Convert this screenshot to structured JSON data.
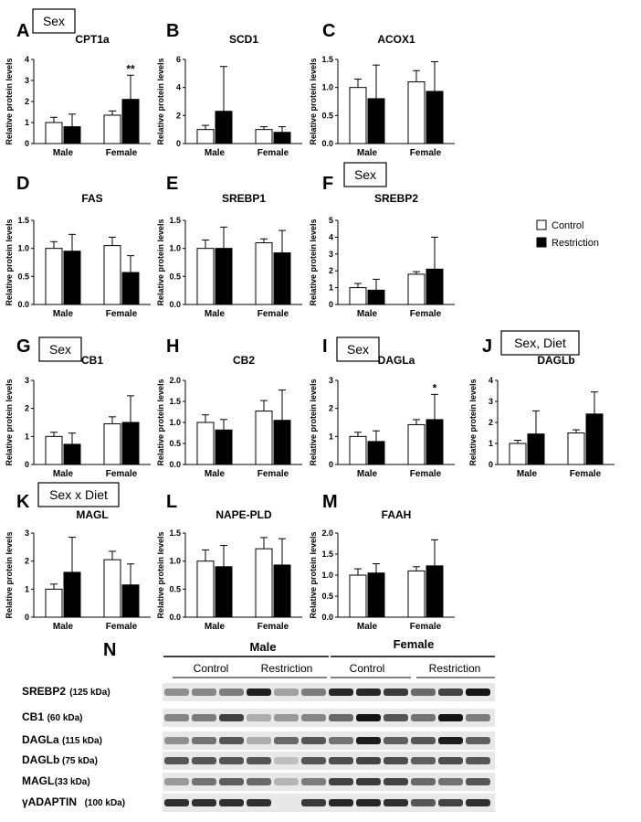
{
  "legend": [
    {
      "label": "Control",
      "color": "#ffffff"
    },
    {
      "label": "Restriction",
      "color": "#000000"
    }
  ],
  "ylabel": "Relative protein levels",
  "chart_data": [
    {
      "letter": "A",
      "title": "CPT1a",
      "type": "bar",
      "categories": [
        "Male",
        "Female"
      ],
      "series": [
        {
          "name": "Control",
          "values": [
            1.0,
            1.35
          ],
          "errors": [
            0.25,
            0.2
          ]
        },
        {
          "name": "Restriction",
          "values": [
            0.8,
            2.1
          ],
          "errors": [
            0.6,
            1.15
          ]
        }
      ],
      "ylim": [
        0,
        4
      ],
      "yticks": [
        "0",
        "1",
        "2",
        "3",
        "4"
      ],
      "annotation": {
        "text": "**",
        "category": 1,
        "series": 1
      },
      "sex_box": "Sex"
    },
    {
      "letter": "B",
      "title": "SCD1",
      "type": "bar",
      "categories": [
        "Male",
        "Female"
      ],
      "series": [
        {
          "name": "Control",
          "values": [
            1.0,
            1.0
          ],
          "errors": [
            0.3,
            0.2
          ]
        },
        {
          "name": "Restriction",
          "values": [
            2.3,
            0.8
          ],
          "errors": [
            3.2,
            0.4
          ]
        }
      ],
      "ylim": [
        0,
        6
      ],
      "yticks": [
        "0",
        "2",
        "4",
        "6"
      ]
    },
    {
      "letter": "C",
      "title": "ACOX1",
      "type": "bar",
      "categories": [
        "Male",
        "Female"
      ],
      "series": [
        {
          "name": "Control",
          "values": [
            1.0,
            1.1
          ],
          "errors": [
            0.15,
            0.2
          ]
        },
        {
          "name": "Restriction",
          "values": [
            0.8,
            0.93
          ],
          "errors": [
            0.6,
            0.53
          ]
        }
      ],
      "ylim": [
        0,
        1.5
      ],
      "yticks": [
        "0.0",
        "0.5",
        "1.0",
        "1.5"
      ]
    },
    {
      "letter": "D",
      "title": "FAS",
      "type": "bar",
      "categories": [
        "Male",
        "Female"
      ],
      "series": [
        {
          "name": "Control",
          "values": [
            1.0,
            1.05
          ],
          "errors": [
            0.12,
            0.15
          ]
        },
        {
          "name": "Restriction",
          "values": [
            0.95,
            0.57
          ],
          "errors": [
            0.3,
            0.3
          ]
        }
      ],
      "ylim": [
        0,
        1.5
      ],
      "yticks": [
        "0.0",
        "0.5",
        "1.0",
        "1.5"
      ]
    },
    {
      "letter": "E",
      "title": "SREBP1",
      "type": "bar",
      "categories": [
        "Male",
        "Female"
      ],
      "series": [
        {
          "name": "Control",
          "values": [
            1.0,
            1.1
          ],
          "errors": [
            0.15,
            0.07
          ]
        },
        {
          "name": "Restriction",
          "values": [
            1.0,
            0.92
          ],
          "errors": [
            0.38,
            0.4
          ]
        }
      ],
      "ylim": [
        0,
        1.5
      ],
      "yticks": [
        "0.0",
        "0.5",
        "1.0",
        "1.5"
      ]
    },
    {
      "letter": "F",
      "title": "SREBP2",
      "type": "bar",
      "categories": [
        "Male",
        "Female"
      ],
      "series": [
        {
          "name": "Control",
          "values": [
            1.0,
            1.8
          ],
          "errors": [
            0.25,
            0.15
          ]
        },
        {
          "name": "Restriction",
          "values": [
            0.85,
            2.1
          ],
          "errors": [
            0.65,
            1.9
          ]
        }
      ],
      "ylim": [
        0,
        5
      ],
      "yticks": [
        "0",
        "1",
        "2",
        "3",
        "4",
        "5"
      ],
      "sex_box": "Sex"
    },
    {
      "letter": "G",
      "title": "CB1",
      "type": "bar",
      "categories": [
        "Male",
        "Female"
      ],
      "series": [
        {
          "name": "Control",
          "values": [
            1.0,
            1.45
          ],
          "errors": [
            0.15,
            0.25
          ]
        },
        {
          "name": "Restriction",
          "values": [
            0.72,
            1.5
          ],
          "errors": [
            0.4,
            0.95
          ]
        }
      ],
      "ylim": [
        0,
        3
      ],
      "yticks": [
        "0",
        "1",
        "2",
        "3"
      ],
      "sex_box": "Sex"
    },
    {
      "letter": "H",
      "title": "CB2",
      "type": "bar",
      "categories": [
        "Male",
        "Female"
      ],
      "series": [
        {
          "name": "Control",
          "values": [
            1.0,
            1.27
          ],
          "errors": [
            0.18,
            0.25
          ]
        },
        {
          "name": "Restriction",
          "values": [
            0.82,
            1.05
          ],
          "errors": [
            0.25,
            0.72
          ]
        }
      ],
      "ylim": [
        0,
        2.0
      ],
      "yticks": [
        "0.0",
        "0.5",
        "1.0",
        "1.5",
        "2.0"
      ]
    },
    {
      "letter": "I",
      "title": "DAGLa",
      "type": "bar",
      "categories": [
        "Male",
        "Female"
      ],
      "series": [
        {
          "name": "Control",
          "values": [
            1.0,
            1.42
          ],
          "errors": [
            0.15,
            0.18
          ]
        },
        {
          "name": "Restriction",
          "values": [
            0.82,
            1.6
          ],
          "errors": [
            0.38,
            0.9
          ]
        }
      ],
      "ylim": [
        0,
        3
      ],
      "yticks": [
        "0",
        "1",
        "2",
        "3"
      ],
      "annotation": {
        "text": "*",
        "category": 1,
        "series": 1
      },
      "sex_box": "Sex"
    },
    {
      "letter": "J",
      "title": "DAGLb",
      "type": "bar",
      "categories": [
        "Male",
        "Female"
      ],
      "series": [
        {
          "name": "Control",
          "values": [
            1.0,
            1.5
          ],
          "errors": [
            0.15,
            0.15
          ]
        },
        {
          "name": "Restriction",
          "values": [
            1.45,
            2.4
          ],
          "errors": [
            1.1,
            1.05
          ]
        }
      ],
      "ylim": [
        0,
        4
      ],
      "yticks": [
        "0",
        "1",
        "2",
        "3",
        "4"
      ],
      "sex_box": "Sex, Diet"
    },
    {
      "letter": "K",
      "title": "MAGL",
      "type": "bar",
      "categories": [
        "Male",
        "Female"
      ],
      "series": [
        {
          "name": "Control",
          "values": [
            1.0,
            2.05
          ],
          "errors": [
            0.18,
            0.3
          ]
        },
        {
          "name": "Restriction",
          "values": [
            1.6,
            1.15
          ],
          "errors": [
            1.25,
            0.75
          ]
        }
      ],
      "ylim": [
        0,
        3
      ],
      "yticks": [
        "0",
        "1",
        "2",
        "3"
      ],
      "sex_box": "Sex x Diet"
    },
    {
      "letter": "L",
      "title": "NAPE-PLD",
      "type": "bar",
      "categories": [
        "Male",
        "Female"
      ],
      "series": [
        {
          "name": "Control",
          "values": [
            1.0,
            1.22
          ],
          "errors": [
            0.2,
            0.2
          ]
        },
        {
          "name": "Restriction",
          "values": [
            0.9,
            0.93
          ],
          "errors": [
            0.38,
            0.47
          ]
        }
      ],
      "ylim": [
        0,
        1.5
      ],
      "yticks": [
        "0.0",
        "0.5",
        "1.0",
        "1.5"
      ]
    },
    {
      "letter": "M",
      "title": "FAAH",
      "type": "bar",
      "categories": [
        "Male",
        "Female"
      ],
      "series": [
        {
          "name": "Control",
          "values": [
            1.0,
            1.1
          ],
          "errors": [
            0.15,
            0.1
          ]
        },
        {
          "name": "Restriction",
          "values": [
            1.05,
            1.22
          ],
          "errors": [
            0.22,
            0.62
          ]
        }
      ],
      "ylim": [
        0,
        2.0
      ],
      "yticks": [
        "0.0",
        "0.5",
        "1.0",
        "1.5",
        "2.0"
      ]
    }
  ],
  "blot": {
    "letter": "N",
    "groups": [
      "Male",
      "Female"
    ],
    "subgroups": [
      "Control",
      "Restriction",
      "Control",
      "Restriction"
    ],
    "proteins": [
      {
        "name": "SREBP2",
        "size": "(125 kDa)"
      },
      {
        "name": "CB1",
        "size": "(60 kDa)"
      },
      {
        "name": "DAGLa",
        "size": "(115 kDa)"
      },
      {
        "name": "DAGLb",
        "size": "(75 kDa)"
      },
      {
        "name": "MAGL",
        "size": "(33 kDa)"
      },
      {
        "name": "γADAPTIN",
        "size": "(100 kDa)"
      }
    ]
  }
}
